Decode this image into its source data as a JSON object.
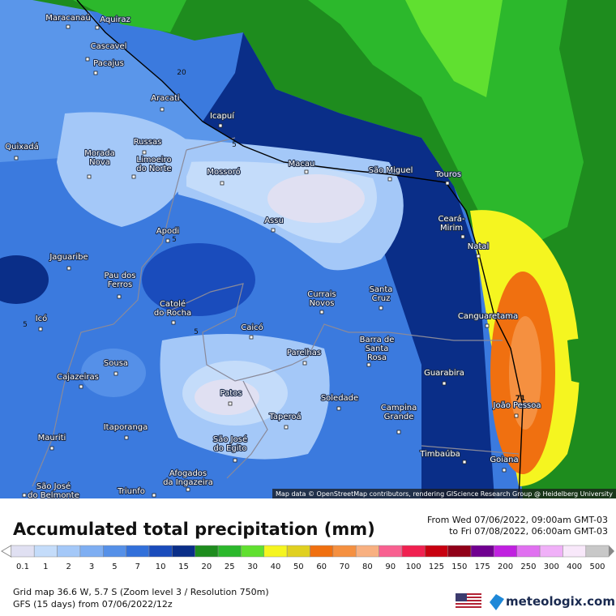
{
  "map": {
    "cities": [
      [
        "Maracanaú"
      ],
      [
        "Aquiraz"
      ],
      [
        "Cascavel"
      ],
      [
        "Pacajus"
      ],
      [
        "Aracati"
      ],
      [
        "Icapuí"
      ],
      [
        "Quixadá"
      ],
      [
        "Russas"
      ],
      [
        "Morada",
        "Nova"
      ],
      [
        "Limoeiro",
        "do Norte"
      ],
      [
        "Mossoró"
      ],
      [
        "Macau"
      ],
      [
        "São Miguel"
      ],
      [
        "Touros"
      ],
      [
        "Ceará-",
        "Mirim"
      ],
      [
        "Natal"
      ],
      [
        "Assu"
      ],
      [
        "Apodi"
      ],
      [
        "Jaguaribe"
      ],
      [
        "Pau dos",
        "Ferros"
      ],
      [
        "Catolé",
        "do Rocha"
      ],
      [
        "Currais",
        "Novos"
      ],
      [
        "Santa",
        "Cruz"
      ],
      [
        "Canguaretama"
      ],
      [
        "Caicó"
      ],
      [
        "Barra de",
        "Santa",
        "Rosa"
      ],
      [
        "Parelhas"
      ],
      [
        "Icó"
      ],
      [
        "Sousa"
      ],
      [
        "Cajazeiras"
      ],
      [
        "Guarabira"
      ],
      [
        "Patos"
      ],
      [
        "Soledade"
      ],
      [
        "Taperoá"
      ],
      [
        "Campina",
        "Grande"
      ],
      [
        "João Pessoa"
      ],
      [
        "Itaporanga"
      ],
      [
        "Mauriti"
      ],
      [
        "São José",
        "do Egito"
      ],
      [
        "Timbaúba"
      ],
      [
        "Goiana"
      ],
      [
        "Afogados",
        "da Ingazeira"
      ],
      [
        "São José",
        "do Belmonte"
      ],
      [
        "Triunfo"
      ]
    ],
    "contour_labels": [
      "20",
      "5",
      "5",
      "5",
      "5",
      "71"
    ],
    "attribution": "Map data © OpenStreetMap contributors, rendering GIScience Research Group @ Heidelberg University"
  },
  "legend": {
    "title": "Accumulated total precipitation (mm)",
    "period_from": "From Wed 07/06/2022, 09:00am GMT-03",
    "period_to": "to Fri 07/08/2022, 06:00am GMT-03",
    "scale": [
      {
        "value": 0.1,
        "color": "#e0e0f2"
      },
      {
        "value": 1,
        "color": "#c4dcfa"
      },
      {
        "value": 2,
        "color": "#a4c8f8"
      },
      {
        "value": 3,
        "color": "#7eaef2"
      },
      {
        "value": 5,
        "color": "#5590e8"
      },
      {
        "value": 7,
        "color": "#3270da"
      },
      {
        "value": 10,
        "color": "#1a4cbc"
      },
      {
        "value": 15,
        "color": "#0a2e88"
      },
      {
        "value": 20,
        "color": "#1e8c1e"
      },
      {
        "value": 25,
        "color": "#2cb82c"
      },
      {
        "value": 30,
        "color": "#60e030"
      },
      {
        "value": 40,
        "color": "#f5f520"
      },
      {
        "value": 50,
        "color": "#e0d020"
      },
      {
        "value": 60,
        "color": "#f07010"
      },
      {
        "value": 70,
        "color": "#f59040"
      },
      {
        "value": 80,
        "color": "#f8b080"
      },
      {
        "value": 90,
        "color": "#f86090"
      },
      {
        "value": 100,
        "color": "#f02050"
      },
      {
        "value": 125,
        "color": "#c80010"
      },
      {
        "value": 150,
        "color": "#900018"
      },
      {
        "value": 175,
        "color": "#700090"
      },
      {
        "value": 200,
        "color": "#c020e0"
      },
      {
        "value": 250,
        "color": "#e070f0"
      },
      {
        "value": 300,
        "color": "#f0b0f8"
      },
      {
        "value": 400,
        "color": "#f8e8fa"
      },
      {
        "value": 500,
        "color": "#c8c8c8"
      }
    ],
    "footer": [
      "Grid map 36.6 W, 5.7 S (Zoom level 3 / Resolution 750m)",
      "GFS (15 days) from 07/06/2022/12z"
    ],
    "brand": "meteologix.com"
  }
}
